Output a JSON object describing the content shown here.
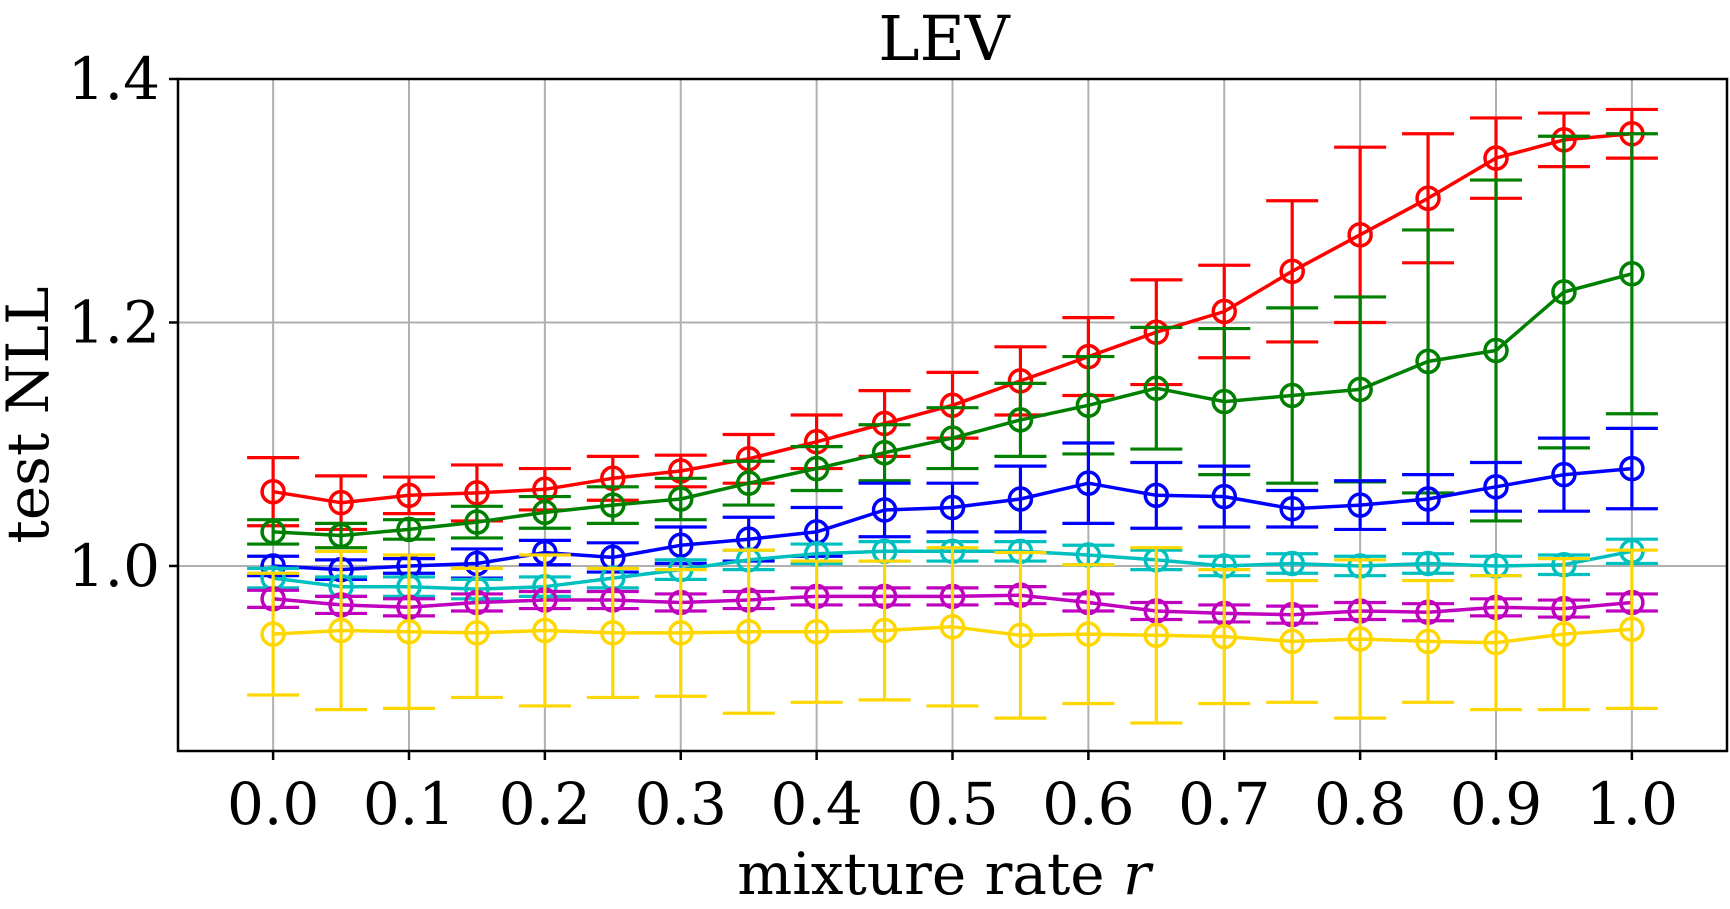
{
  "chart_data": {
    "type": "line",
    "title": "LEV",
    "xlabel": "mixture rate",
    "xlabel_var": "r",
    "ylabel": "test NLL",
    "xlim": [
      -0.07,
      1.07
    ],
    "ylim": [
      0.848,
      1.4
    ],
    "grid": true,
    "x": [
      0.0,
      0.05,
      0.1,
      0.15,
      0.2,
      0.25,
      0.3,
      0.35,
      0.4,
      0.45,
      0.5,
      0.55,
      0.6,
      0.65,
      0.7,
      0.75,
      0.8,
      0.85,
      0.9,
      0.95,
      1.0
    ],
    "x_ticks": [
      "0.0",
      "0.1",
      "0.2",
      "0.3",
      "0.4",
      "0.5",
      "0.6",
      "0.7",
      "0.8",
      "0.9",
      "1.0"
    ],
    "x_tick_values": [
      0.0,
      0.1,
      0.2,
      0.3,
      0.4,
      0.5,
      0.6,
      0.7,
      0.8,
      0.9,
      1.0
    ],
    "y_ticks": [
      "1.0",
      "1.2",
      "1.4"
    ],
    "y_tick_values": [
      1.0,
      1.2,
      1.4
    ],
    "series": [
      {
        "name": "red",
        "color": "#ff0000",
        "values": [
          1.061,
          1.052,
          1.058,
          1.06,
          1.063,
          1.072,
          1.078,
          1.088,
          1.102,
          1.117,
          1.132,
          1.152,
          1.172,
          1.192,
          1.209,
          1.242,
          1.272,
          1.302,
          1.335,
          1.35,
          1.355
        ],
        "errors": [
          0.028,
          0.022,
          0.015,
          0.023,
          0.017,
          0.018,
          0.013,
          0.02,
          0.022,
          0.027,
          0.027,
          0.028,
          0.032,
          0.043,
          0.038,
          0.058,
          0.072,
          0.053,
          0.033,
          0.022,
          0.02
        ]
      },
      {
        "name": "green",
        "color": "#008000",
        "values": [
          1.028,
          1.025,
          1.03,
          1.036,
          1.044,
          1.05,
          1.055,
          1.068,
          1.08,
          1.093,
          1.105,
          1.12,
          1.132,
          1.146,
          1.135,
          1.14,
          1.145,
          1.168,
          1.177,
          1.225,
          1.24
        ],
        "errors": [
          0.01,
          0.01,
          0.008,
          0.013,
          0.013,
          0.015,
          0.017,
          0.018,
          0.018,
          0.023,
          0.025,
          0.03,
          0.04,
          0.05,
          0.06,
          0.072,
          0.076,
          0.108,
          0.14,
          0.128,
          0.115
        ]
      },
      {
        "name": "blue",
        "color": "#0000ff",
        "values": [
          1.0,
          0.997,
          1.0,
          1.002,
          1.011,
          1.007,
          1.017,
          1.022,
          1.028,
          1.046,
          1.048,
          1.055,
          1.068,
          1.058,
          1.057,
          1.047,
          1.05,
          1.055,
          1.065,
          1.075,
          1.08
        ],
        "errors": [
          0.008,
          0.008,
          0.006,
          0.012,
          0.01,
          0.012,
          0.015,
          0.018,
          0.02,
          0.022,
          0.02,
          0.027,
          0.033,
          0.027,
          0.025,
          0.015,
          0.02,
          0.02,
          0.02,
          0.03,
          0.033
        ]
      },
      {
        "name": "cyan",
        "color": "#00bfbf",
        "values": [
          0.99,
          0.983,
          0.983,
          0.981,
          0.983,
          0.99,
          0.997,
          1.005,
          1.01,
          1.012,
          1.012,
          1.012,
          1.009,
          1.005,
          1.0,
          1.002,
          1.0,
          1.002,
          1.0,
          1.001,
          1.012
        ],
        "errors": [
          0.008,
          0.008,
          0.008,
          0.008,
          0.008,
          0.008,
          0.008,
          0.008,
          0.008,
          0.008,
          0.008,
          0.008,
          0.008,
          0.008,
          0.008,
          0.008,
          0.008,
          0.008,
          0.008,
          0.008,
          0.01
        ]
      },
      {
        "name": "magenta",
        "color": "#bf00bf",
        "values": [
          0.973,
          0.968,
          0.966,
          0.97,
          0.972,
          0.972,
          0.97,
          0.972,
          0.975,
          0.975,
          0.975,
          0.976,
          0.97,
          0.963,
          0.961,
          0.96,
          0.963,
          0.962,
          0.966,
          0.965,
          0.97
        ],
        "errors": [
          0.007,
          0.007,
          0.007,
          0.007,
          0.007,
          0.007,
          0.007,
          0.007,
          0.007,
          0.007,
          0.007,
          0.007,
          0.007,
          0.007,
          0.007,
          0.007,
          0.007,
          0.007,
          0.007,
          0.007,
          0.007
        ]
      },
      {
        "name": "gold",
        "color": "#ffd700",
        "values": [
          0.944,
          0.947,
          0.946,
          0.945,
          0.947,
          0.945,
          0.945,
          0.946,
          0.946,
          0.947,
          0.95,
          0.943,
          0.944,
          0.943,
          0.942,
          0.938,
          0.94,
          0.938,
          0.937,
          0.944,
          0.948
        ],
        "errors": [
          0.05,
          0.065,
          0.063,
          0.053,
          0.062,
          0.053,
          0.052,
          0.067,
          0.058,
          0.057,
          0.065,
          0.068,
          0.057,
          0.072,
          0.055,
          0.05,
          0.065,
          0.05,
          0.055,
          0.062,
          0.065
        ]
      }
    ]
  }
}
